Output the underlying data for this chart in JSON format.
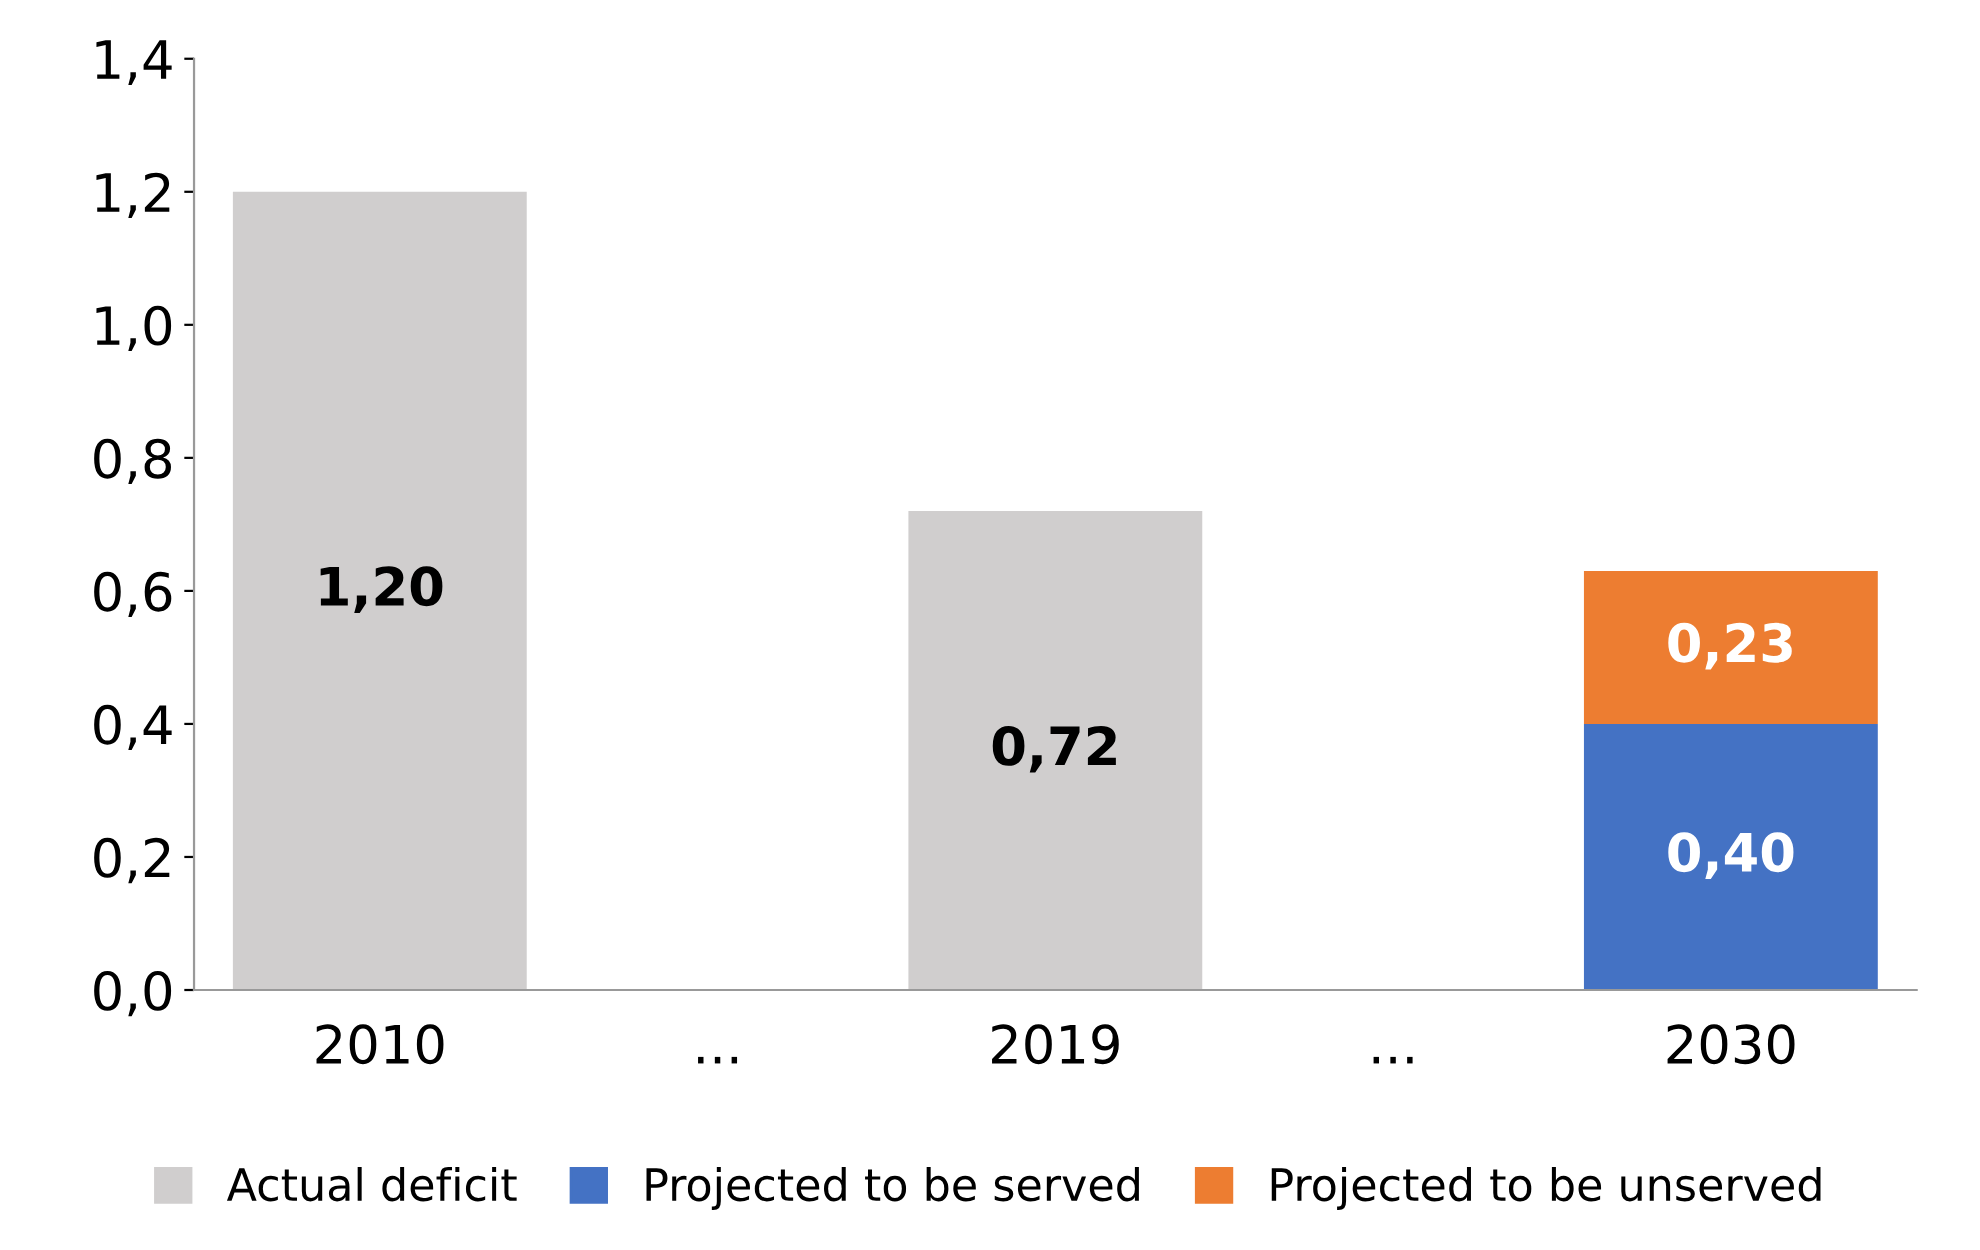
{
  "chart_data": {
    "type": "bar",
    "stacked": true,
    "categories": [
      "2010",
      "...",
      "2019",
      "...",
      "2030"
    ],
    "series": [
      {
        "name": "Actual deficit",
        "color": "#d0cece",
        "values": [
          1.2,
          null,
          0.72,
          null,
          null
        ],
        "value_labels": [
          "1,20",
          null,
          "0,72",
          null,
          null
        ]
      },
      {
        "name": "Projected to be served",
        "color": "#4472c4",
        "values": [
          null,
          null,
          null,
          null,
          0.4
        ],
        "value_labels": [
          null,
          null,
          null,
          null,
          "0,40"
        ]
      },
      {
        "name": "Projected to be unserved",
        "color": "#ed7d31",
        "values": [
          null,
          null,
          null,
          null,
          0.23
        ],
        "value_labels": [
          null,
          null,
          null,
          null,
          "0,23"
        ]
      }
    ],
    "ylim": [
      0,
      1.4
    ],
    "yticks": [
      {
        "value": 0,
        "label": "0,0"
      },
      {
        "value": 0.2,
        "label": "0,2"
      },
      {
        "value": 0.4,
        "label": "0,4"
      },
      {
        "value": 0.6,
        "label": "0,6"
      },
      {
        "value": 0.8,
        "label": "0,8"
      },
      {
        "value": 1.0,
        "label": "1,0"
      },
      {
        "value": 1.2,
        "label": "1,2"
      },
      {
        "value": 1.4,
        "label": "1,4"
      }
    ],
    "grid": false,
    "legend": "bottom"
  }
}
